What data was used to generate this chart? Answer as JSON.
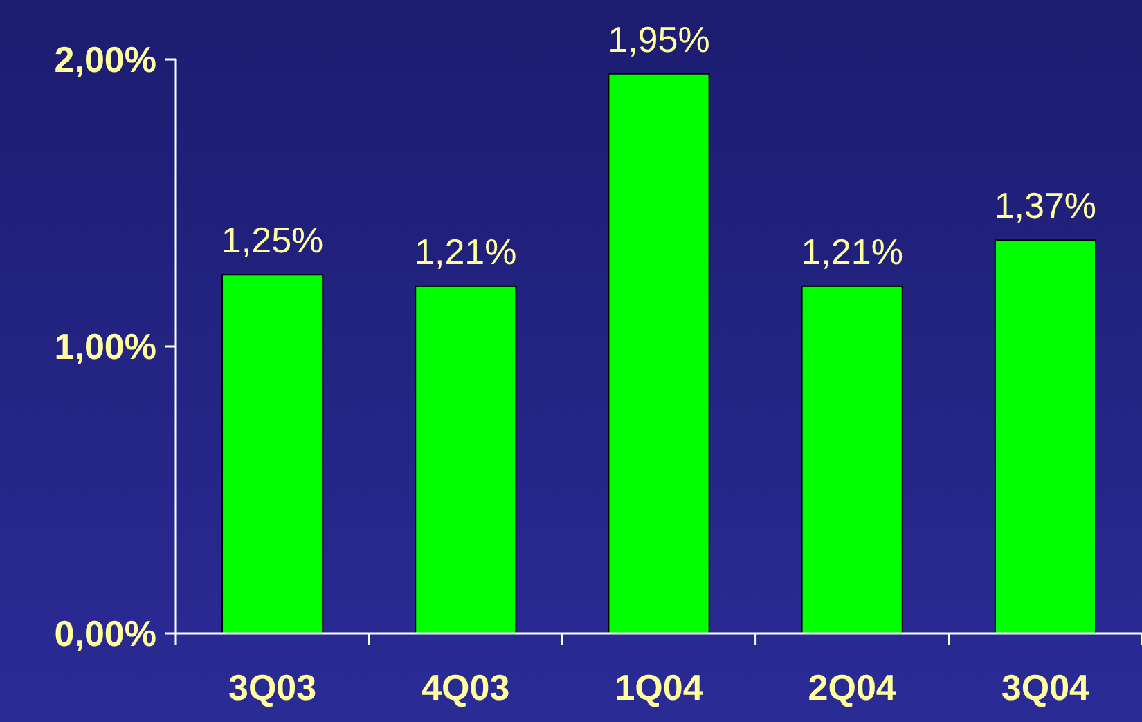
{
  "chart_data": {
    "type": "bar",
    "categories": [
      "3Q03",
      "4Q03",
      "1Q04",
      "2Q04",
      "3Q04"
    ],
    "values": [
      1.25,
      1.21,
      1.95,
      1.21,
      1.37
    ],
    "value_labels": [
      "1,25%",
      "1,21%",
      "1,95%",
      "1,21%",
      "1,37%"
    ],
    "color": "#00ff00",
    "ylim": [
      0,
      2
    ],
    "yticks": [
      {
        "value": 0,
        "label": "0,00%"
      },
      {
        "value": 1,
        "label": "1,00%"
      },
      {
        "value": 2,
        "label": "2,00%"
      }
    ],
    "grid": false
  }
}
